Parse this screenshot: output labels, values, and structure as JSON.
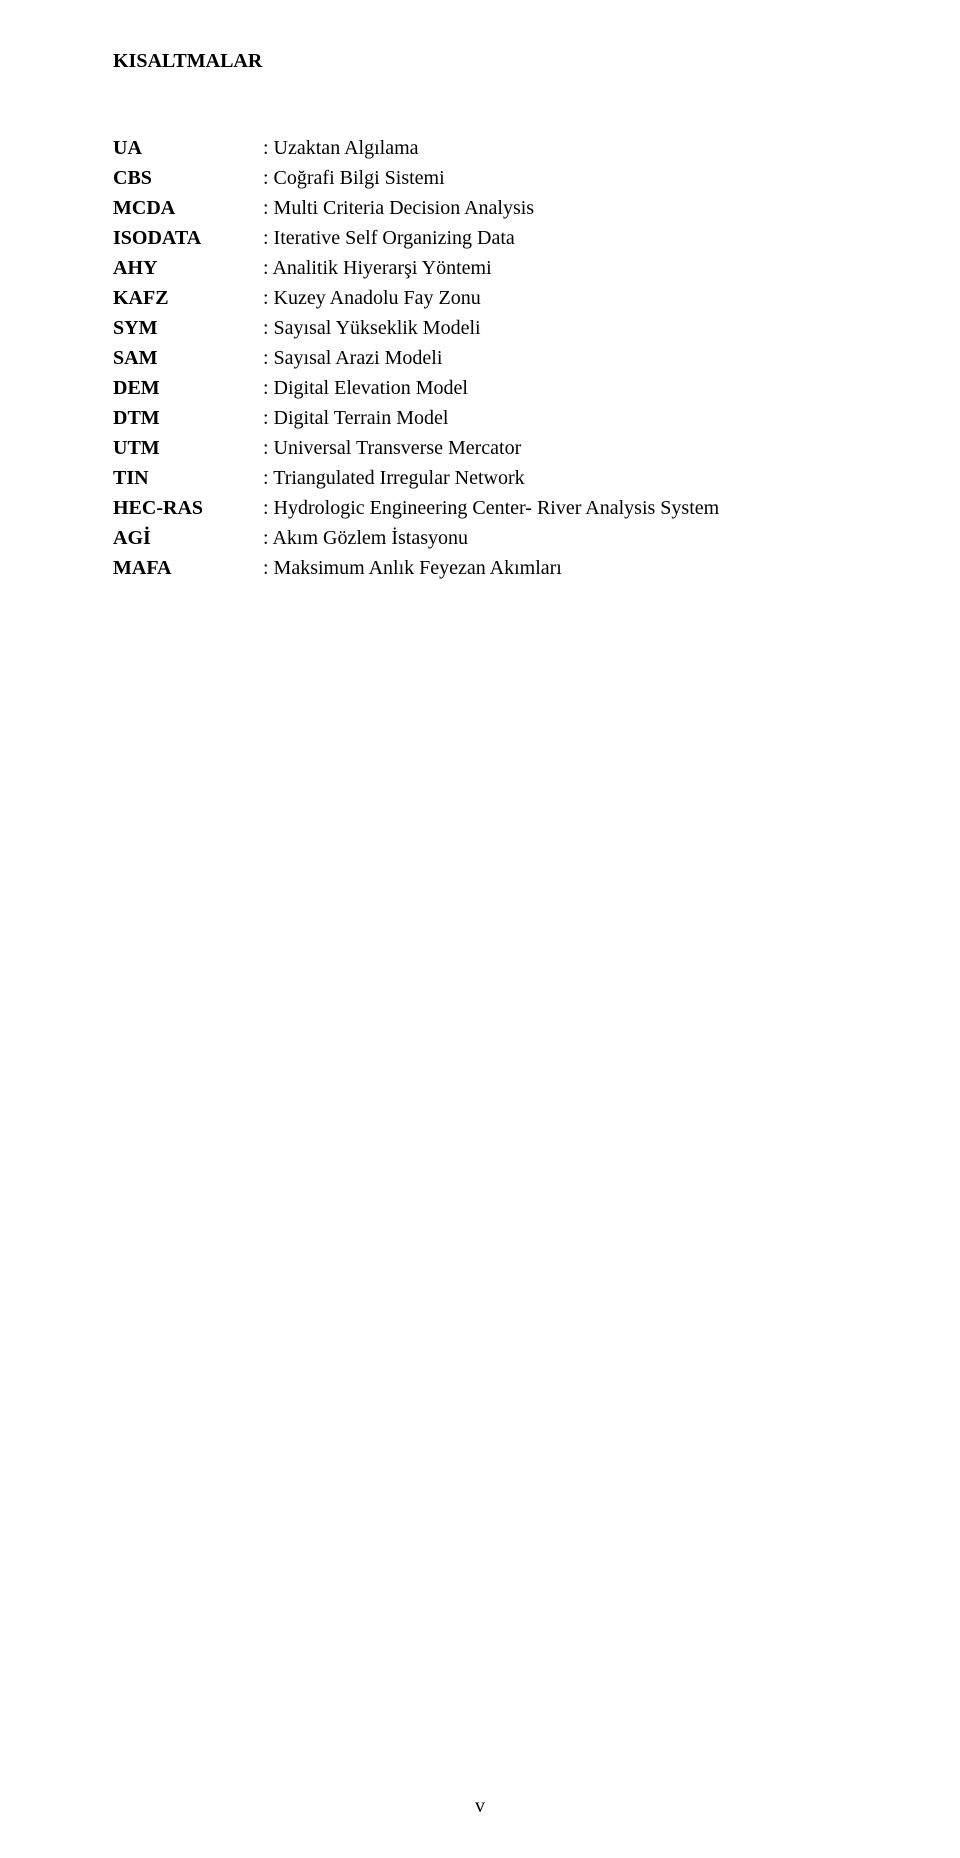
{
  "heading": "KISALTMALAR",
  "abbreviations": [
    {
      "term": "UA",
      "definition": ": Uzaktan Algılama"
    },
    {
      "term": "CBS",
      "definition": ": Coğrafi Bilgi Sistemi"
    },
    {
      "term": "MCDA",
      "definition": ": Multi Criteria Decision Analysis"
    },
    {
      "term": "ISODATA",
      "definition": ": Iterative Self Organizing Data"
    },
    {
      "term": "AHY",
      "definition": ": Analitik Hiyerarşi Yöntemi"
    },
    {
      "term": "KAFZ",
      "definition": ": Kuzey Anadolu Fay Zonu"
    },
    {
      "term": "SYM",
      "definition": ": Sayısal Yükseklik Modeli"
    },
    {
      "term": "SAM",
      "definition": ": Sayısal Arazi Modeli"
    },
    {
      "term": "DEM",
      "definition": ": Digital Elevation Model"
    },
    {
      "term": "DTM",
      "definition": ": Digital Terrain Model"
    },
    {
      "term": "UTM",
      "definition": ": Universal Transverse Mercator"
    },
    {
      "term": "TIN",
      "definition": ": Triangulated Irregular Network"
    },
    {
      "term": "HEC-RAS",
      "definition": ": Hydrologic Engineering Center- River Analysis System"
    },
    {
      "term": "AGİ",
      "definition": ": Akım Gözlem İstasyonu"
    },
    {
      "term": "MAFA",
      "definition": ": Maksimum Anlık Feyezan Akımları"
    }
  ],
  "pageNumber": "v"
}
